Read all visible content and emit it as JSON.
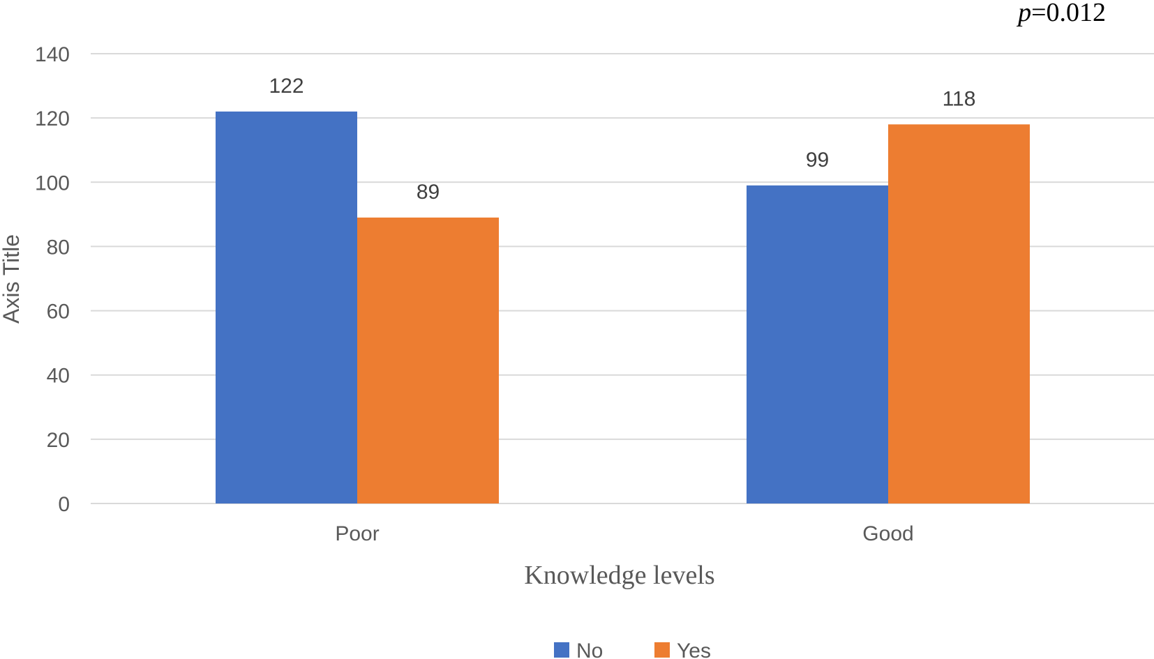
{
  "chart_data": {
    "type": "bar",
    "categories": [
      "Poor",
      "Good"
    ],
    "series": [
      {
        "name": "No",
        "values": [
          122,
          99
        ],
        "color": "#4472c4"
      },
      {
        "name": "Yes",
        "values": [
          89,
          118
        ],
        "color": "#ed7d31"
      }
    ],
    "xlabel": "Knowledge levels",
    "ylabel": "Axis Title",
    "ylim": [
      0,
      140
    ],
    "yticks": [
      0,
      20,
      40,
      60,
      80,
      100,
      120,
      140
    ],
    "grid": true,
    "legend": "bottom",
    "annotation": {
      "italic": "p",
      "rest": "=0.012",
      "position": "top-right"
    }
  }
}
